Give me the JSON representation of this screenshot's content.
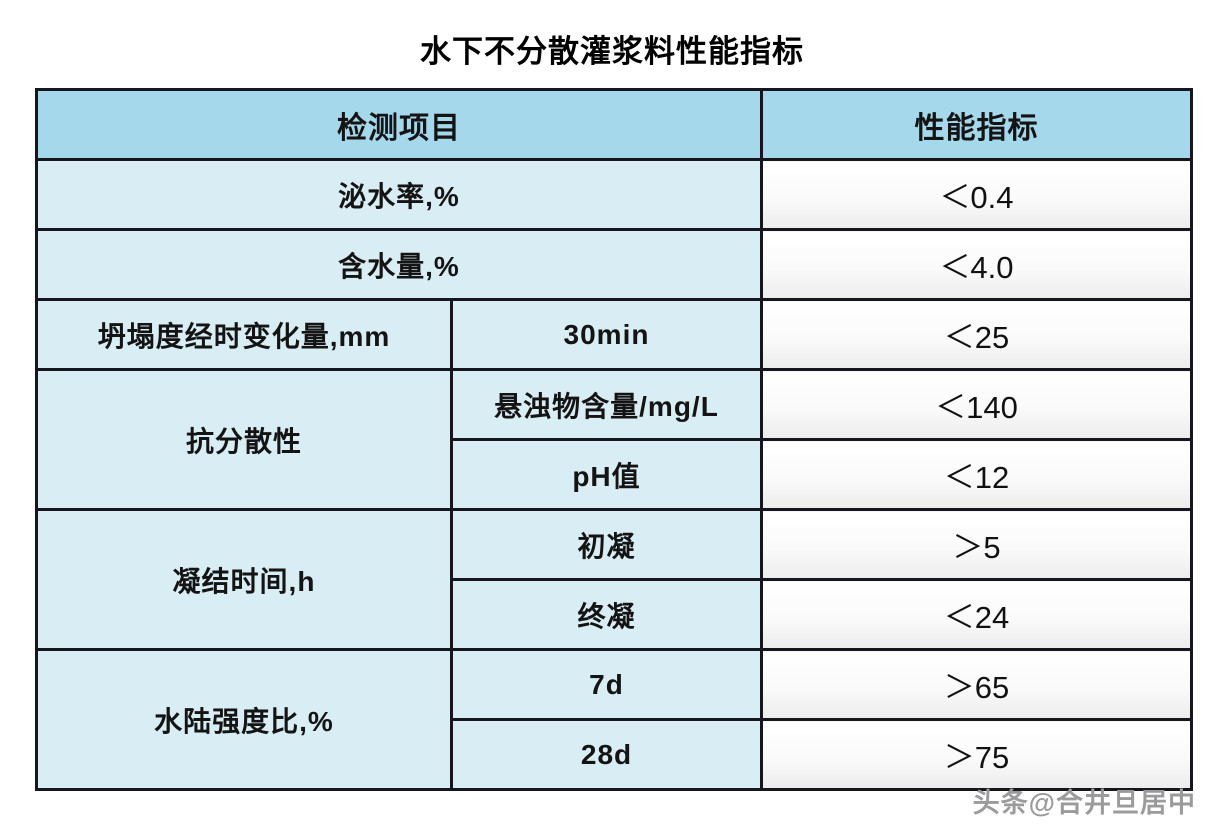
{
  "title": "水下不分散灌浆料性能指标",
  "watermark": "头条@合井旦居中",
  "header": {
    "test_item": "检测项目",
    "performance": "性能指标"
  },
  "rows": {
    "bleeding": {
      "label": "泌水率,%",
      "value": "＜0.4"
    },
    "water_content": {
      "label": "含水量,%",
      "value": "＜4.0"
    },
    "slump_change": {
      "label": "坍塌度经时变化量,mm",
      "sub": "30min",
      "value": "＜25"
    },
    "anti_dispersion": {
      "label": "抗分散性",
      "sub1": "悬浊物含量/mg/L",
      "value1": "＜140",
      "sub2": "pH值",
      "value2": "＜12"
    },
    "setting_time": {
      "label": "凝结时间,h",
      "sub1": "初凝",
      "value1": "＞5",
      "sub2": "终凝",
      "value2": "＜24"
    },
    "strength_ratio": {
      "label": "水陆强度比,%",
      "sub1": "7d",
      "value1": "＞65",
      "sub2": "28d",
      "value2": "＞75"
    }
  }
}
